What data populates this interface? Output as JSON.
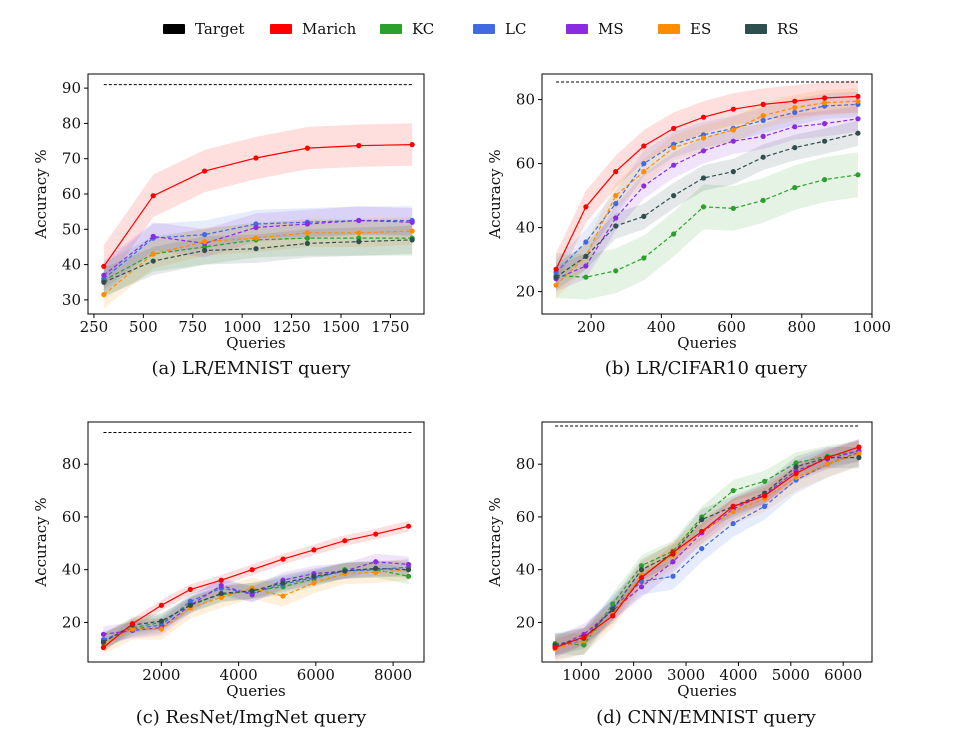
{
  "legend": [
    {
      "name": "Target",
      "color": "#000000"
    },
    {
      "name": "Marich",
      "color": "#ff0000"
    },
    {
      "name": "KC",
      "color": "#2ca02c"
    },
    {
      "name": "LC",
      "color": "#4169e1"
    },
    {
      "name": "MS",
      "color": "#8a2be2"
    },
    {
      "name": "ES",
      "color": "#ff8c00"
    },
    {
      "name": "RS",
      "color": "#2f4f4f"
    }
  ],
  "chart_data": [
    {
      "type": "line",
      "caption": "(a) LR/EMNIST query",
      "xlabel": "Queries",
      "ylabel": "Accuracy %",
      "xlim": [
        220,
        1920
      ],
      "ylim": [
        26,
        94
      ],
      "xticks": [
        250,
        500,
        750,
        1000,
        1250,
        1500,
        1750
      ],
      "yticks": [
        30,
        40,
        50,
        60,
        70,
        80,
        90
      ],
      "target": {
        "value": 91,
        "x_range": [
          300,
          1860
        ]
      },
      "x": [
        300,
        550,
        810,
        1070,
        1330,
        1590,
        1860
      ],
      "series": [
        {
          "name": "Marich",
          "values": [
            39.5,
            59.5,
            66.5,
            70.2,
            73,
            73.7,
            74
          ],
          "band": 6
        },
        {
          "name": "KC",
          "values": [
            35.5,
            43,
            45,
            47,
            47.5,
            47.5,
            47.5
          ],
          "band": 5
        },
        {
          "name": "LC",
          "values": [
            36,
            47.5,
            48.5,
            51.5,
            52,
            52.5,
            52.5
          ],
          "band": 4
        },
        {
          "name": "MS",
          "values": [
            37,
            48,
            46,
            50.5,
            51.5,
            52.5,
            52
          ],
          "band": 4
        },
        {
          "name": "ES",
          "values": [
            31.5,
            43,
            46.5,
            47.5,
            49,
            49,
            49.5
          ],
          "band": 4
        },
        {
          "name": "RS",
          "values": [
            35,
            41,
            44,
            44.5,
            46,
            46.5,
            47
          ],
          "band": 4
        }
      ]
    },
    {
      "type": "line",
      "caption": "(b) LR/CIFAR10 query",
      "xlabel": "Queries",
      "ylabel": "Accuracy %",
      "xlim": [
        60,
        1000
      ],
      "ylim": [
        13,
        88
      ],
      "xticks": [
        200,
        400,
        600,
        800,
        1000
      ],
      "yticks": [
        20,
        40,
        60,
        80
      ],
      "target": {
        "value": 85.5,
        "x_range": [
          100,
          960
        ]
      },
      "x": [
        100,
        185,
        270,
        350,
        435,
        520,
        605,
        690,
        780,
        865,
        960
      ],
      "series": [
        {
          "name": "Marich",
          "values": [
            27,
            46.5,
            57.5,
            65.5,
            71,
            74.5,
            77,
            78.5,
            79.5,
            80.5,
            81
          ],
          "band": 5
        },
        {
          "name": "KC",
          "values": [
            25,
            24.5,
            26.5,
            30.5,
            38,
            46.5,
            46,
            48.5,
            52.5,
            55,
            56.5
          ],
          "band": 7
        },
        {
          "name": "LC",
          "values": [
            26,
            35.5,
            47.5,
            60,
            66,
            69,
            71,
            73.5,
            76,
            78,
            78.5
          ],
          "band": 4
        },
        {
          "name": "MS",
          "values": [
            24,
            28,
            43,
            53,
            59.5,
            64,
            67,
            68.5,
            71.5,
            72.5,
            74
          ],
          "band": 4
        },
        {
          "name": "ES",
          "values": [
            22,
            31,
            50,
            57.5,
            65,
            68,
            70.5,
            75,
            77.5,
            79,
            79.5
          ],
          "band": 4
        },
        {
          "name": "RS",
          "values": [
            24.5,
            31,
            40.5,
            43.5,
            50,
            55.5,
            57.5,
            62,
            65,
            67,
            69.5
          ],
          "band": 4
        }
      ]
    },
    {
      "type": "line",
      "caption": "(c) ResNet/ImgNet query",
      "xlabel": "Queries",
      "ylabel": "Accuracy %",
      "xlim": [
        100,
        8800
      ],
      "ylim": [
        5,
        96
      ],
      "xticks": [
        2000,
        4000,
        6000,
        8000
      ],
      "yticks": [
        20,
        40,
        60,
        80
      ],
      "target": {
        "value": 92,
        "x_range": [
          500,
          8500
        ]
      },
      "x": [
        500,
        1250,
        2000,
        2750,
        3550,
        4350,
        5150,
        5950,
        6750,
        7550,
        8400
      ],
      "series": [
        {
          "name": "Marich",
          "values": [
            10.5,
            19.5,
            26.5,
            32.5,
            36,
            40,
            44,
            47.5,
            51,
            53.5,
            56.5
          ],
          "band": 2
        },
        {
          "name": "KC",
          "values": [
            13,
            18,
            20,
            27,
            30.5,
            32,
            33.5,
            36.5,
            40,
            40,
            37.5
          ],
          "band": 3
        },
        {
          "name": "LC",
          "values": [
            13.5,
            17.5,
            19,
            28,
            33,
            31,
            34.5,
            37,
            39.5,
            40,
            41
          ],
          "band": 3
        },
        {
          "name": "MS",
          "values": [
            15.5,
            17,
            18,
            26.5,
            34,
            30.5,
            36,
            38.5,
            39.5,
            43,
            42
          ],
          "band": 3
        },
        {
          "name": "ES",
          "values": [
            12,
            17.5,
            17.5,
            25.5,
            29.5,
            33,
            30,
            35,
            38.5,
            39,
            40
          ],
          "band": 4
        },
        {
          "name": "RS",
          "values": [
            12.5,
            19,
            20.5,
            26.5,
            31,
            32,
            35,
            37.5,
            39.5,
            40.5,
            40
          ],
          "band": 3
        }
      ]
    },
    {
      "type": "line",
      "caption": "(d) CNN/EMNIST query",
      "xlabel": "Queries",
      "ylabel": "Accuracy %",
      "xlim": [
        250,
        6550
      ],
      "ylim": [
        5,
        96
      ],
      "xticks": [
        1000,
        2000,
        3000,
        4000,
        5000,
        6000
      ],
      "yticks": [
        20,
        40,
        60,
        80
      ],
      "target": {
        "value": 94.5,
        "x_range": [
          500,
          6300
        ]
      },
      "x": [
        500,
        1050,
        1600,
        2150,
        2750,
        3300,
        3900,
        4500,
        5100,
        5700,
        6300
      ],
      "series": [
        {
          "name": "Marich",
          "values": [
            10.5,
            14.5,
            22.5,
            37,
            46.5,
            54.5,
            64,
            68,
            76.5,
            82.5,
            86.5
          ],
          "band": 3
        },
        {
          "name": "KC",
          "values": [
            12,
            11.5,
            27,
            41.5,
            47,
            60,
            70,
            73.5,
            80.5,
            83,
            85
          ],
          "band": 4
        },
        {
          "name": "LC",
          "values": [
            11,
            13,
            25.5,
            35.5,
            37.5,
            48,
            57.5,
            64,
            74,
            80,
            84.5
          ],
          "band": 5
        },
        {
          "name": "MS",
          "values": [
            10.5,
            15.5,
            24.5,
            33.5,
            43,
            54,
            63,
            68.5,
            77.5,
            82,
            85
          ],
          "band": 4
        },
        {
          "name": "ES",
          "values": [
            10,
            13,
            23,
            38,
            45.5,
            54.5,
            62,
            67,
            75,
            80,
            84
          ],
          "band": 5
        },
        {
          "name": "RS",
          "values": [
            11.5,
            14,
            25,
            40,
            46,
            59,
            64,
            69,
            79,
            82.5,
            82.5
          ],
          "band": 4
        }
      ]
    }
  ]
}
